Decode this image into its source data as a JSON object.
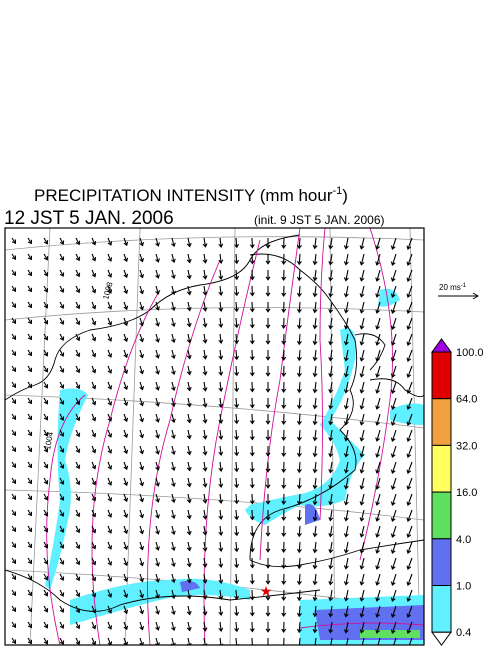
{
  "title": {
    "main": "PRECIPITATION INTENSITY (mm hour",
    "exponent": "-1",
    "end": ")"
  },
  "valid_time": "12 JST 5 JAN. 2006",
  "init_time": "(init. 9 JST 5 JAN. 2006)",
  "wind_scale": {
    "text": "20 ms",
    "exponent": "-1"
  },
  "isobar_labels": [
    "1004",
    "1008"
  ],
  "colorbar": {
    "levels": [
      {
        "value": 100,
        "label": "100.0"
      },
      {
        "value": 64,
        "label": "64.0"
      },
      {
        "value": 32,
        "label": "32.0"
      },
      {
        "value": 16,
        "label": "16.0"
      },
      {
        "value": 4,
        "label": "4.0"
      },
      {
        "value": 1,
        "label": "1.0"
      },
      {
        "value": 0.4,
        "label": "0.4"
      }
    ],
    "colors": [
      "#a000e0",
      "#e00000",
      "#f0a040",
      "#ffff60",
      "#60e060",
      "#6070f0",
      "#60f0ff",
      "#ffffff"
    ]
  }
}
